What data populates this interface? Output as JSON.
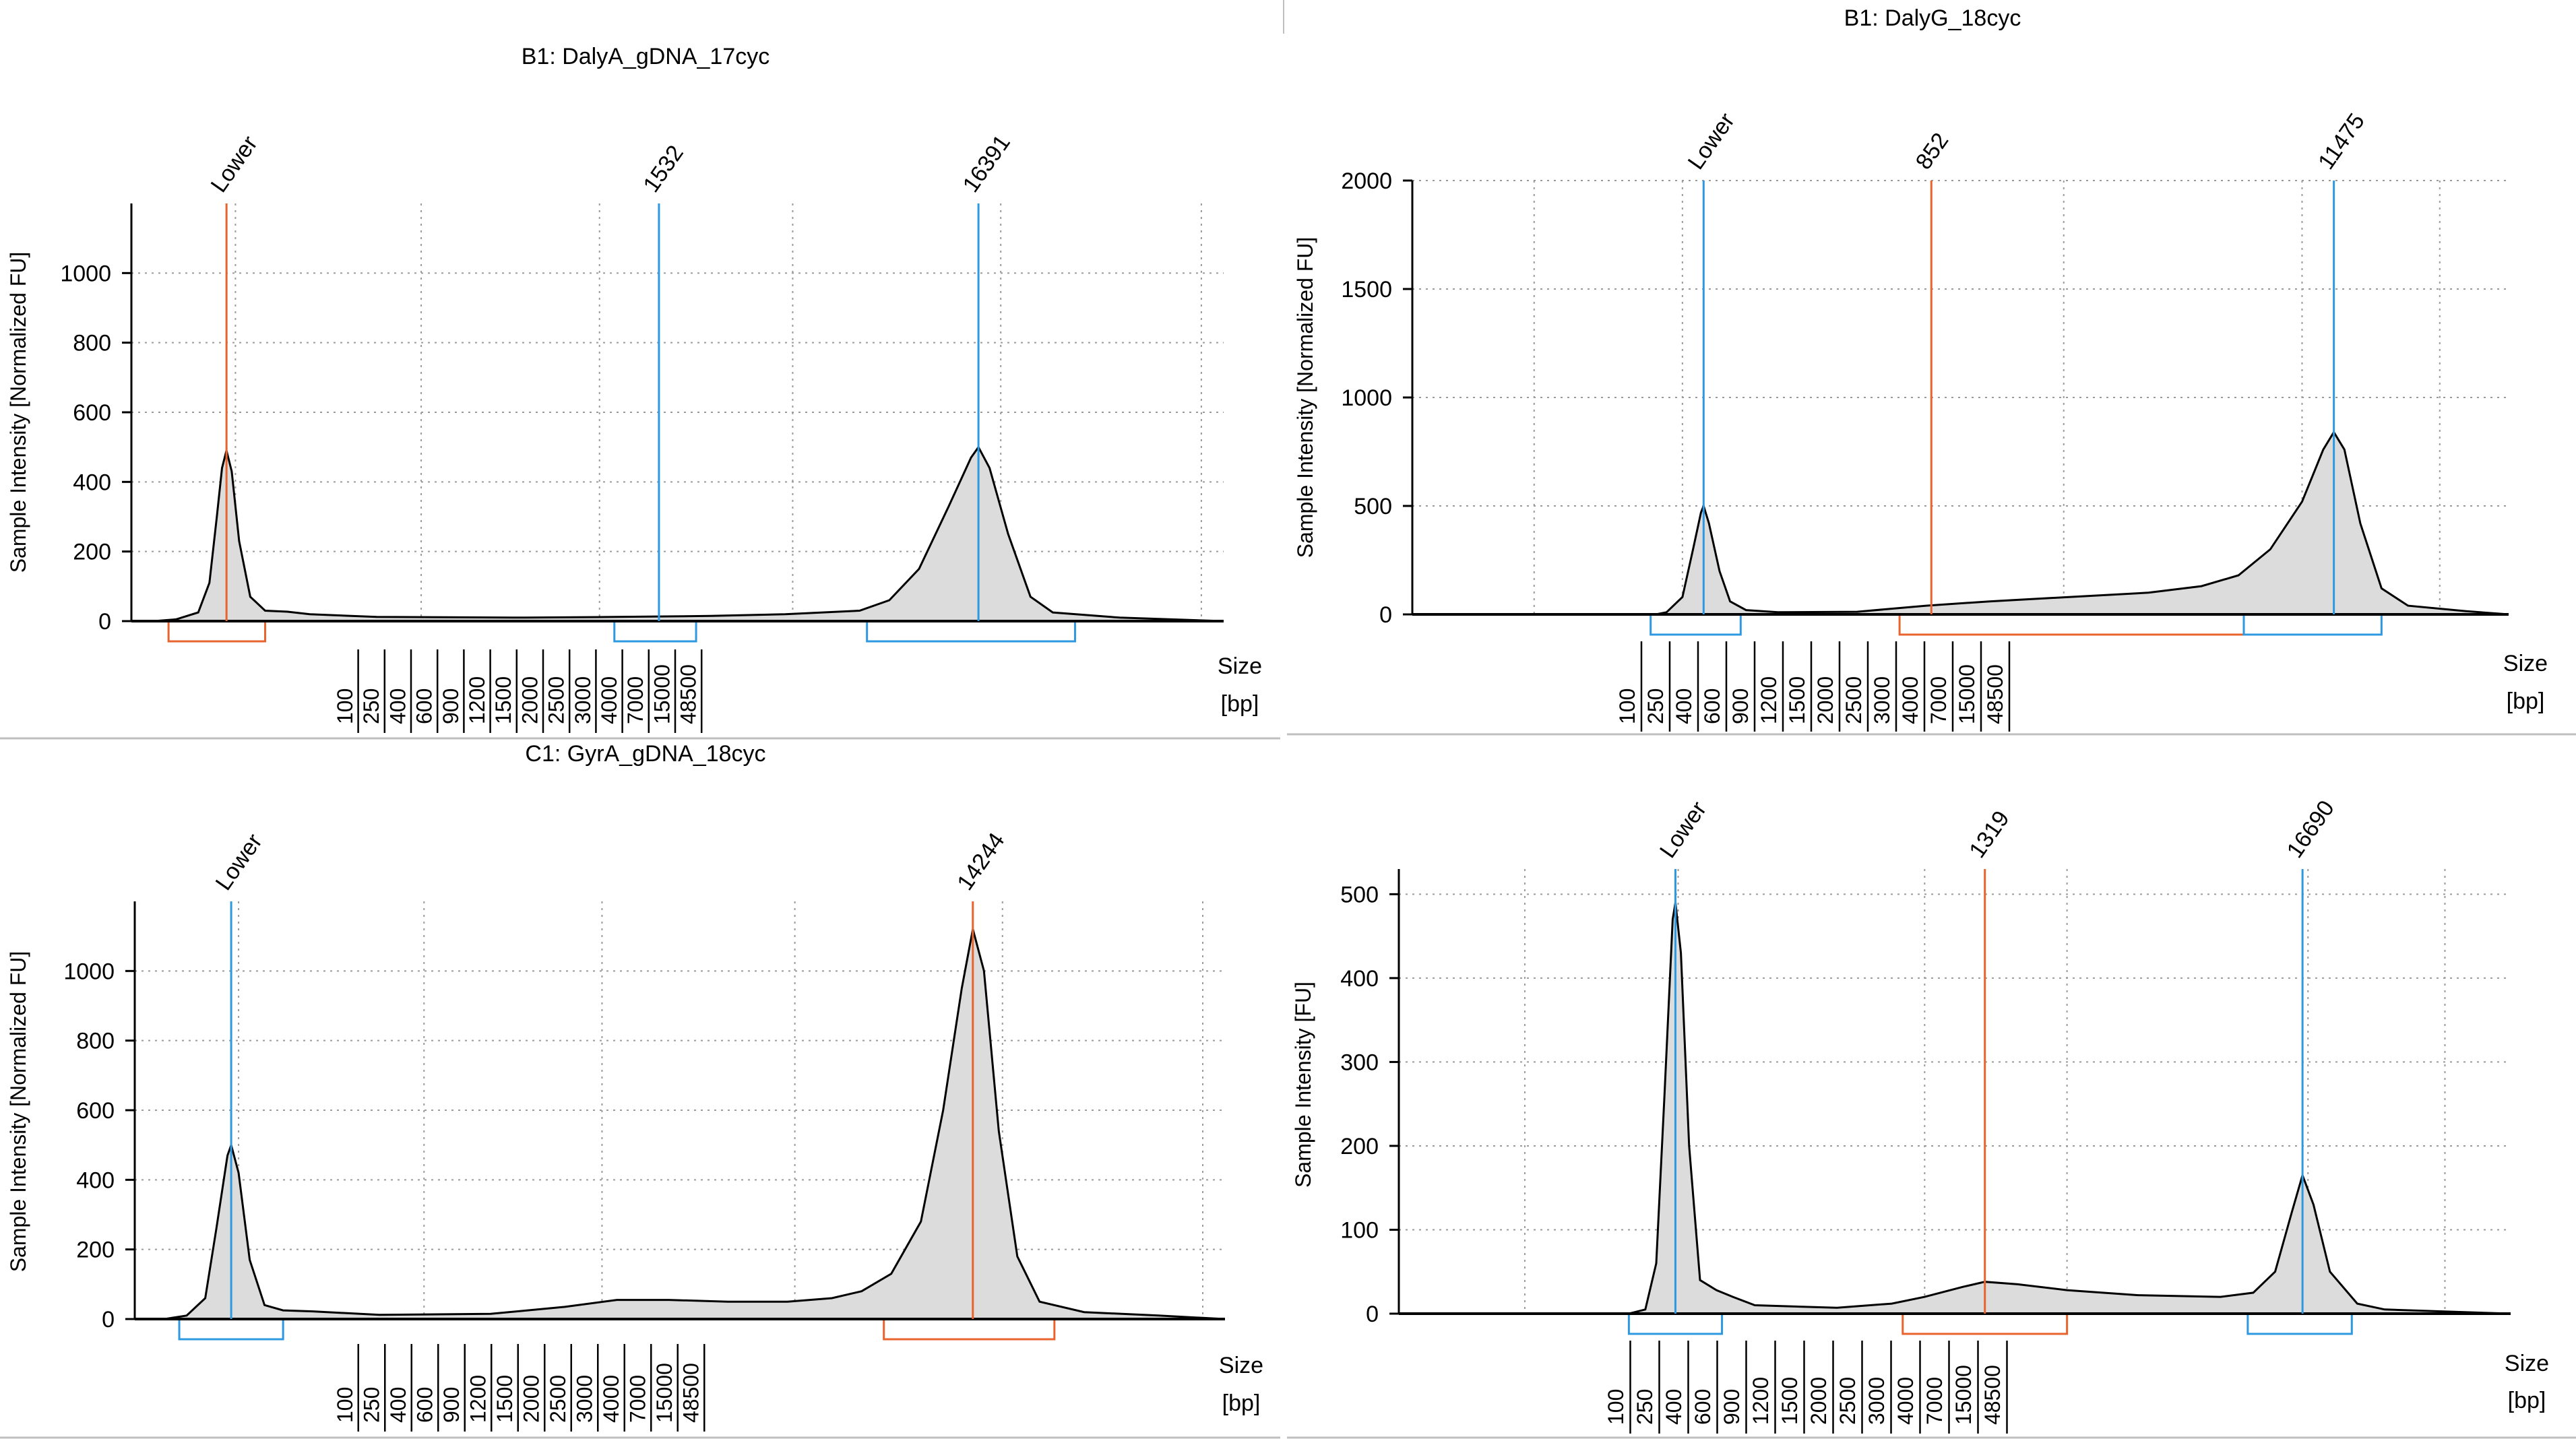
{
  "chart_data": [
    {
      "type": "area",
      "title": "B1: DalyA_gDNA_17cyc",
      "ylabel": "Sample Intensity [Normalized FU]",
      "xlabel_line1": "Size",
      "xlabel_line2": "[bp]",
      "ylim": [
        0,
        1200
      ],
      "yticks": [
        "0",
        "200",
        "400",
        "600",
        "800",
        "1000"
      ],
      "ytick_values": [
        0,
        200,
        400,
        600,
        800,
        1000
      ],
      "xticks": [
        "100",
        "250",
        "400",
        "600",
        "900",
        "1200",
        "1500",
        "2000",
        "2500",
        "3000",
        "4000",
        "7000",
        "15000",
        "48500"
      ],
      "x_range": [
        -0.8,
        13.9
      ],
      "xgrid_positions": [
        0.6,
        3.1,
        5.5,
        8.1,
        10.9,
        13.6
      ],
      "trace": [
        [
          -0.8,
          0
        ],
        [
          -0.5,
          0
        ],
        [
          -0.2,
          5
        ],
        [
          0.1,
          25
        ],
        [
          0.25,
          110
        ],
        [
          0.35,
          300
        ],
        [
          0.42,
          440
        ],
        [
          0.48,
          490
        ],
        [
          0.55,
          430
        ],
        [
          0.65,
          230
        ],
        [
          0.8,
          70
        ],
        [
          1.0,
          30
        ],
        [
          1.3,
          27
        ],
        [
          1.6,
          20
        ],
        [
          2.5,
          12
        ],
        [
          4.5,
          10
        ],
        [
          5.7,
          12
        ],
        [
          7.0,
          15
        ],
        [
          8.0,
          20
        ],
        [
          9.0,
          30
        ],
        [
          9.4,
          60
        ],
        [
          9.8,
          150
        ],
        [
          10.2,
          330
        ],
        [
          10.5,
          470
        ],
        [
          10.6,
          500
        ],
        [
          10.75,
          440
        ],
        [
          11.0,
          250
        ],
        [
          11.3,
          70
        ],
        [
          11.6,
          25
        ],
        [
          12.5,
          10
        ],
        [
          13.9,
          0
        ]
      ],
      "markers": [
        {
          "label": "Lower",
          "x": 0.48,
          "color": "#E8632E"
        },
        {
          "label": "1532",
          "x": 6.3,
          "color": "#2E98E0"
        },
        {
          "label": "16391",
          "x": 10.6,
          "color": "#2E98E0"
        }
      ],
      "brackets": [
        {
          "x1": -0.3,
          "x2": 1.0,
          "color": "#E8632E"
        },
        {
          "x1": 5.7,
          "x2": 6.8,
          "color": "#2E98E0"
        },
        {
          "x1": 9.1,
          "x2": 11.9,
          "color": "#2E98E0"
        }
      ]
    },
    {
      "type": "area",
      "title": "B1: DalyG_18cyc",
      "ylabel": "Sample Intensity [Normalized FU]",
      "xlabel_line1": "Size",
      "xlabel_line2": "[bp]",
      "ylim": [
        0,
        2000
      ],
      "yticks": [
        "0",
        "500",
        "1000",
        "1500",
        "2000"
      ],
      "ytick_values": [
        0,
        500,
        1000,
        1500,
        2000
      ],
      "xticks": [
        "100",
        "250",
        "400",
        "600",
        "900",
        "1200",
        "1500",
        "2000",
        "2500",
        "3000",
        "4000",
        "7000",
        "15000",
        "48500"
      ],
      "x_range": [
        -5.4,
        15.3
      ],
      "xgrid_positions": [
        -3.1,
        -0.3,
        4.4,
        6.9,
        11.4,
        14.0
      ],
      "trace": [
        [
          -5.4,
          0
        ],
        [
          -0.8,
          0
        ],
        [
          -0.6,
          10
        ],
        [
          -0.3,
          80
        ],
        [
          -0.1,
          300
        ],
        [
          0.05,
          470
        ],
        [
          0.1,
          500
        ],
        [
          0.2,
          420
        ],
        [
          0.4,
          200
        ],
        [
          0.6,
          60
        ],
        [
          0.9,
          20
        ],
        [
          1.5,
          10
        ],
        [
          3.0,
          12
        ],
        [
          4.3,
          40
        ],
        [
          5.5,
          60
        ],
        [
          7.0,
          80
        ],
        [
          8.5,
          100
        ],
        [
          9.5,
          130
        ],
        [
          10.2,
          180
        ],
        [
          10.8,
          300
        ],
        [
          11.4,
          520
        ],
        [
          11.8,
          760
        ],
        [
          12.0,
          840
        ],
        [
          12.2,
          760
        ],
        [
          12.5,
          420
        ],
        [
          12.9,
          120
        ],
        [
          13.4,
          40
        ],
        [
          14.5,
          15
        ],
        [
          15.3,
          0
        ]
      ],
      "markers": [
        {
          "label": "Lower",
          "x": 0.1,
          "color": "#2E98E0"
        },
        {
          "label": "852",
          "x": 4.4,
          "color": "#E8632E"
        },
        {
          "label": "11475",
          "x": 12.0,
          "color": "#2E98E0"
        }
      ],
      "brackets": [
        {
          "x1": -0.9,
          "x2": 0.8,
          "color": "#2E98E0"
        },
        {
          "x1": 3.8,
          "x2": 10.3,
          "color": "#E8632E"
        },
        {
          "x1": 10.3,
          "x2": 12.9,
          "color": "#2E98E0"
        }
      ]
    },
    {
      "type": "area",
      "title": "C1: GyrA_gDNA_18cyc",
      "ylabel": "Sample Intensity [Normalized FU]",
      "xlabel_line1": "Size",
      "xlabel_line2": "[bp]",
      "ylim": [
        0,
        1200
      ],
      "yticks": [
        "0",
        "200",
        "400",
        "600",
        "800",
        "1000"
      ],
      "ytick_values": [
        0,
        200,
        400,
        600,
        800,
        1000
      ],
      "xticks": [
        "100",
        "250",
        "400",
        "600",
        "900",
        "1200",
        "1500",
        "2000",
        "2500",
        "3000",
        "4000",
        "7000",
        "15000",
        "48500"
      ],
      "x_range": [
        -0.8,
        13.9
      ],
      "xgrid_positions": [
        0.6,
        3.1,
        5.5,
        8.1,
        10.9,
        13.6
      ],
      "trace": [
        [
          -0.8,
          0
        ],
        [
          -0.4,
          0
        ],
        [
          -0.1,
          10
        ],
        [
          0.15,
          60
        ],
        [
          0.3,
          260
        ],
        [
          0.45,
          470
        ],
        [
          0.5,
          500
        ],
        [
          0.6,
          420
        ],
        [
          0.75,
          170
        ],
        [
          0.95,
          40
        ],
        [
          1.2,
          25
        ],
        [
          1.6,
          22
        ],
        [
          2.5,
          12
        ],
        [
          4.0,
          15
        ],
        [
          5.0,
          35
        ],
        [
          5.7,
          55
        ],
        [
          6.4,
          55
        ],
        [
          7.2,
          50
        ],
        [
          8.0,
          50
        ],
        [
          8.6,
          60
        ],
        [
          9.0,
          80
        ],
        [
          9.4,
          130
        ],
        [
          9.8,
          280
        ],
        [
          10.1,
          600
        ],
        [
          10.35,
          950
        ],
        [
          10.5,
          1120
        ],
        [
          10.65,
          1000
        ],
        [
          10.85,
          540
        ],
        [
          11.1,
          180
        ],
        [
          11.4,
          50
        ],
        [
          12.0,
          20
        ],
        [
          13.0,
          10
        ],
        [
          13.9,
          0
        ]
      ],
      "markers": [
        {
          "label": "Lower",
          "x": 0.5,
          "color": "#2E98E0"
        },
        {
          "label": "14244",
          "x": 10.5,
          "color": "#E8632E"
        }
      ],
      "brackets": [
        {
          "x1": -0.2,
          "x2": 1.2,
          "color": "#2E98E0"
        },
        {
          "x1": 9.3,
          "x2": 11.6,
          "color": "#E8632E"
        }
      ]
    },
    {
      "type": "area",
      "title": "",
      "ylabel": "Sample Intensity [FU]",
      "xlabel_line1": "Size",
      "xlabel_line2": "[bp]",
      "ylim": [
        0,
        530
      ],
      "yticks": [
        "0",
        "100",
        "200",
        "300",
        "400",
        "500"
      ],
      "ytick_values": [
        0,
        100,
        200,
        300,
        400,
        500
      ],
      "xticks": [
        "100",
        "250",
        "400",
        "600",
        "900",
        "1200",
        "1500",
        "2000",
        "2500",
        "3000",
        "4000",
        "7000",
        "15000",
        "48500"
      ],
      "x_range": [
        -5.0,
        15.3
      ],
      "xgrid_positions": [
        -2.7,
        0.1,
        4.6,
        7.2,
        11.6,
        14.1
      ],
      "trace": [
        [
          -5.0,
          0
        ],
        [
          -0.8,
          0
        ],
        [
          -0.5,
          5
        ],
        [
          -0.3,
          60
        ],
        [
          -0.15,
          260
        ],
        [
          0.0,
          470
        ],
        [
          0.05,
          490
        ],
        [
          0.15,
          430
        ],
        [
          0.3,
          200
        ],
        [
          0.5,
          40
        ],
        [
          0.8,
          28
        ],
        [
          1.1,
          20
        ],
        [
          1.5,
          10
        ],
        [
          3.0,
          7
        ],
        [
          4.0,
          12
        ],
        [
          4.6,
          20
        ],
        [
          5.3,
          32
        ],
        [
          5.7,
          38
        ],
        [
          6.3,
          35
        ],
        [
          7.2,
          28
        ],
        [
          8.5,
          22
        ],
        [
          10.0,
          20
        ],
        [
          10.6,
          25
        ],
        [
          11.0,
          50
        ],
        [
          11.3,
          120
        ],
        [
          11.5,
          165
        ],
        [
          11.7,
          130
        ],
        [
          12.0,
          50
        ],
        [
          12.5,
          12
        ],
        [
          13.0,
          5
        ],
        [
          15.3,
          0
        ]
      ],
      "markers": [
        {
          "label": "Lower",
          "x": 0.05,
          "color": "#2E98E0"
        },
        {
          "label": "1319",
          "x": 5.7,
          "color": "#E8632E"
        },
        {
          "label": "16690",
          "x": 11.5,
          "color": "#2E98E0"
        }
      ],
      "brackets": [
        {
          "x1": -0.8,
          "x2": 0.9,
          "color": "#2E98E0"
        },
        {
          "x1": 4.2,
          "x2": 7.2,
          "color": "#E8632E"
        },
        {
          "x1": 10.5,
          "x2": 12.4,
          "color": "#2E98E0"
        }
      ]
    }
  ]
}
